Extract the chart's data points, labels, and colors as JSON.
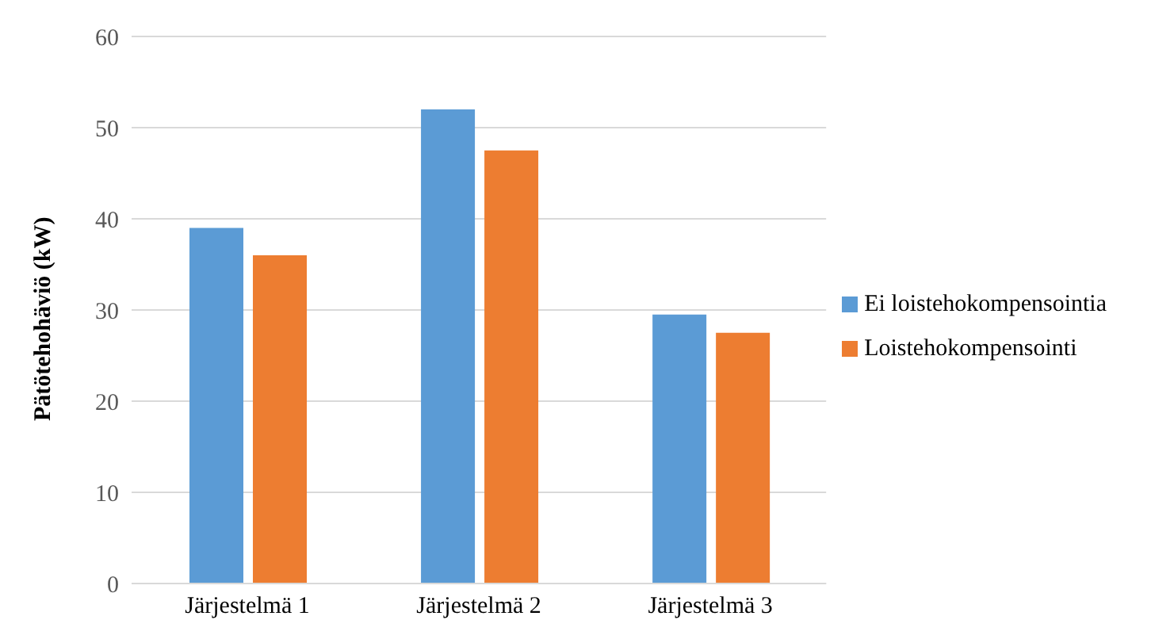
{
  "chart_data": {
    "type": "bar",
    "ylabel": "Pätötehohäviö (kW)",
    "categories": [
      "Järjestelmä 1",
      "Järjestelmä 2",
      "Järjestelmä 3"
    ],
    "series": [
      {
        "name": "Ei loistehokompensointia",
        "color": "#5b9bd5",
        "values": [
          39,
          52,
          29.5
        ]
      },
      {
        "name": "Loistehokompensointi",
        "color": "#ed7d31",
        "values": [
          36,
          47.5,
          27.5
        ]
      }
    ],
    "ylim": [
      0,
      60
    ],
    "yticks": [
      0,
      10,
      20,
      30,
      40,
      50,
      60
    ],
    "grid": "y",
    "legend": "right"
  }
}
